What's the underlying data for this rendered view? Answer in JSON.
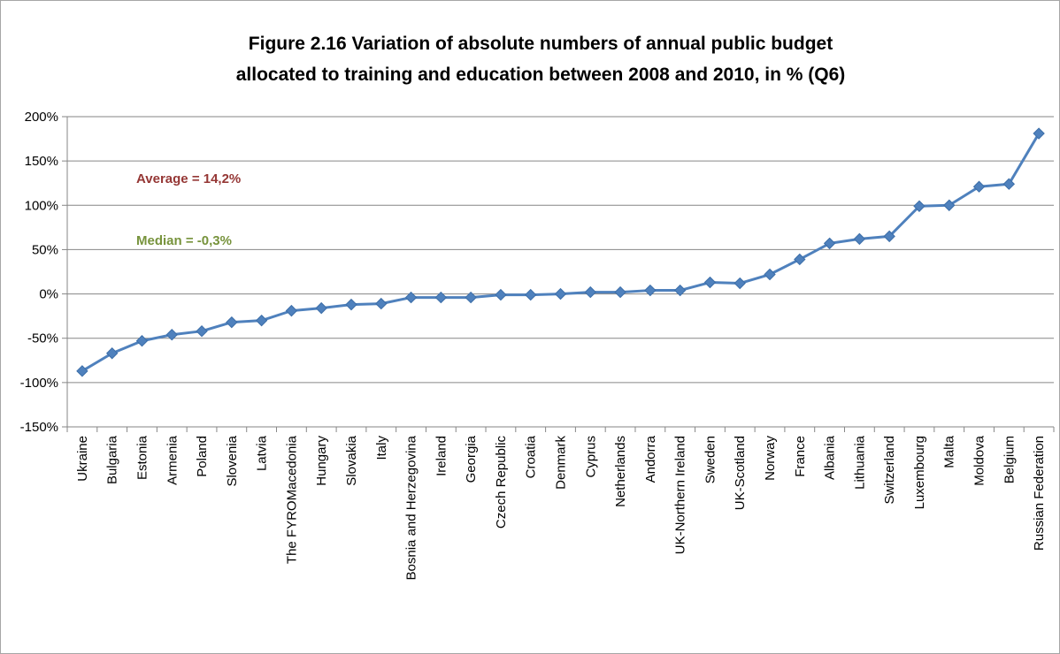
{
  "chart_data": {
    "type": "line",
    "title_lines": [
      "Figure 2.16 Variation of absolute numbers of annual public budget",
      "allocated to training and education between 2008 and 2010, in % (Q6)"
    ],
    "categories": [
      "Ukraine",
      "Bulgaria",
      "Estonia",
      "Armenia",
      "Poland",
      "Slovenia",
      "Latvia",
      "The FYROMacedonia",
      "Hungary",
      "Slovakia",
      "Italy",
      "Bosnia and Herzegovina",
      "Ireland",
      "Georgia",
      "Czech Republic",
      "Croatia",
      "Denmark",
      "Cyprus",
      "Netherlands",
      "Andorra",
      "UK-Northern Ireland",
      "Sweden",
      "UK-Scotland",
      "Norway",
      "France",
      "Albania",
      "Lithuania",
      "Switzerland",
      "Luxembourg",
      "Malta",
      "Moldova",
      "Belgium",
      "Russian Federation"
    ],
    "series": [
      {
        "values": [
          -87,
          -67,
          -53,
          -46,
          -42,
          -32,
          -30,
          -19,
          -16,
          -12,
          -11,
          -4,
          -4,
          -4,
          -1,
          -1,
          0,
          2,
          2,
          4,
          4,
          13,
          12,
          22,
          39,
          57,
          62,
          65,
          99,
          100,
          121,
          124,
          181
        ]
      }
    ],
    "yticks": [
      "200%",
      "150%",
      "100%",
      "50%",
      "0%",
      "-50%",
      "-100%",
      "-150%"
    ],
    "ylim": [
      -150,
      200
    ],
    "ytick_step": 50,
    "grid": true,
    "legend": "none",
    "annotations": [
      {
        "text": "Average = 14,2%",
        "color": "#953735"
      },
      {
        "text": "Median = -0,3%",
        "color": "#77933c"
      }
    ],
    "colors": {
      "line": "#4f81bd",
      "marker": "#4f81bd",
      "grid": "#868686",
      "axis": "#868686"
    }
  }
}
